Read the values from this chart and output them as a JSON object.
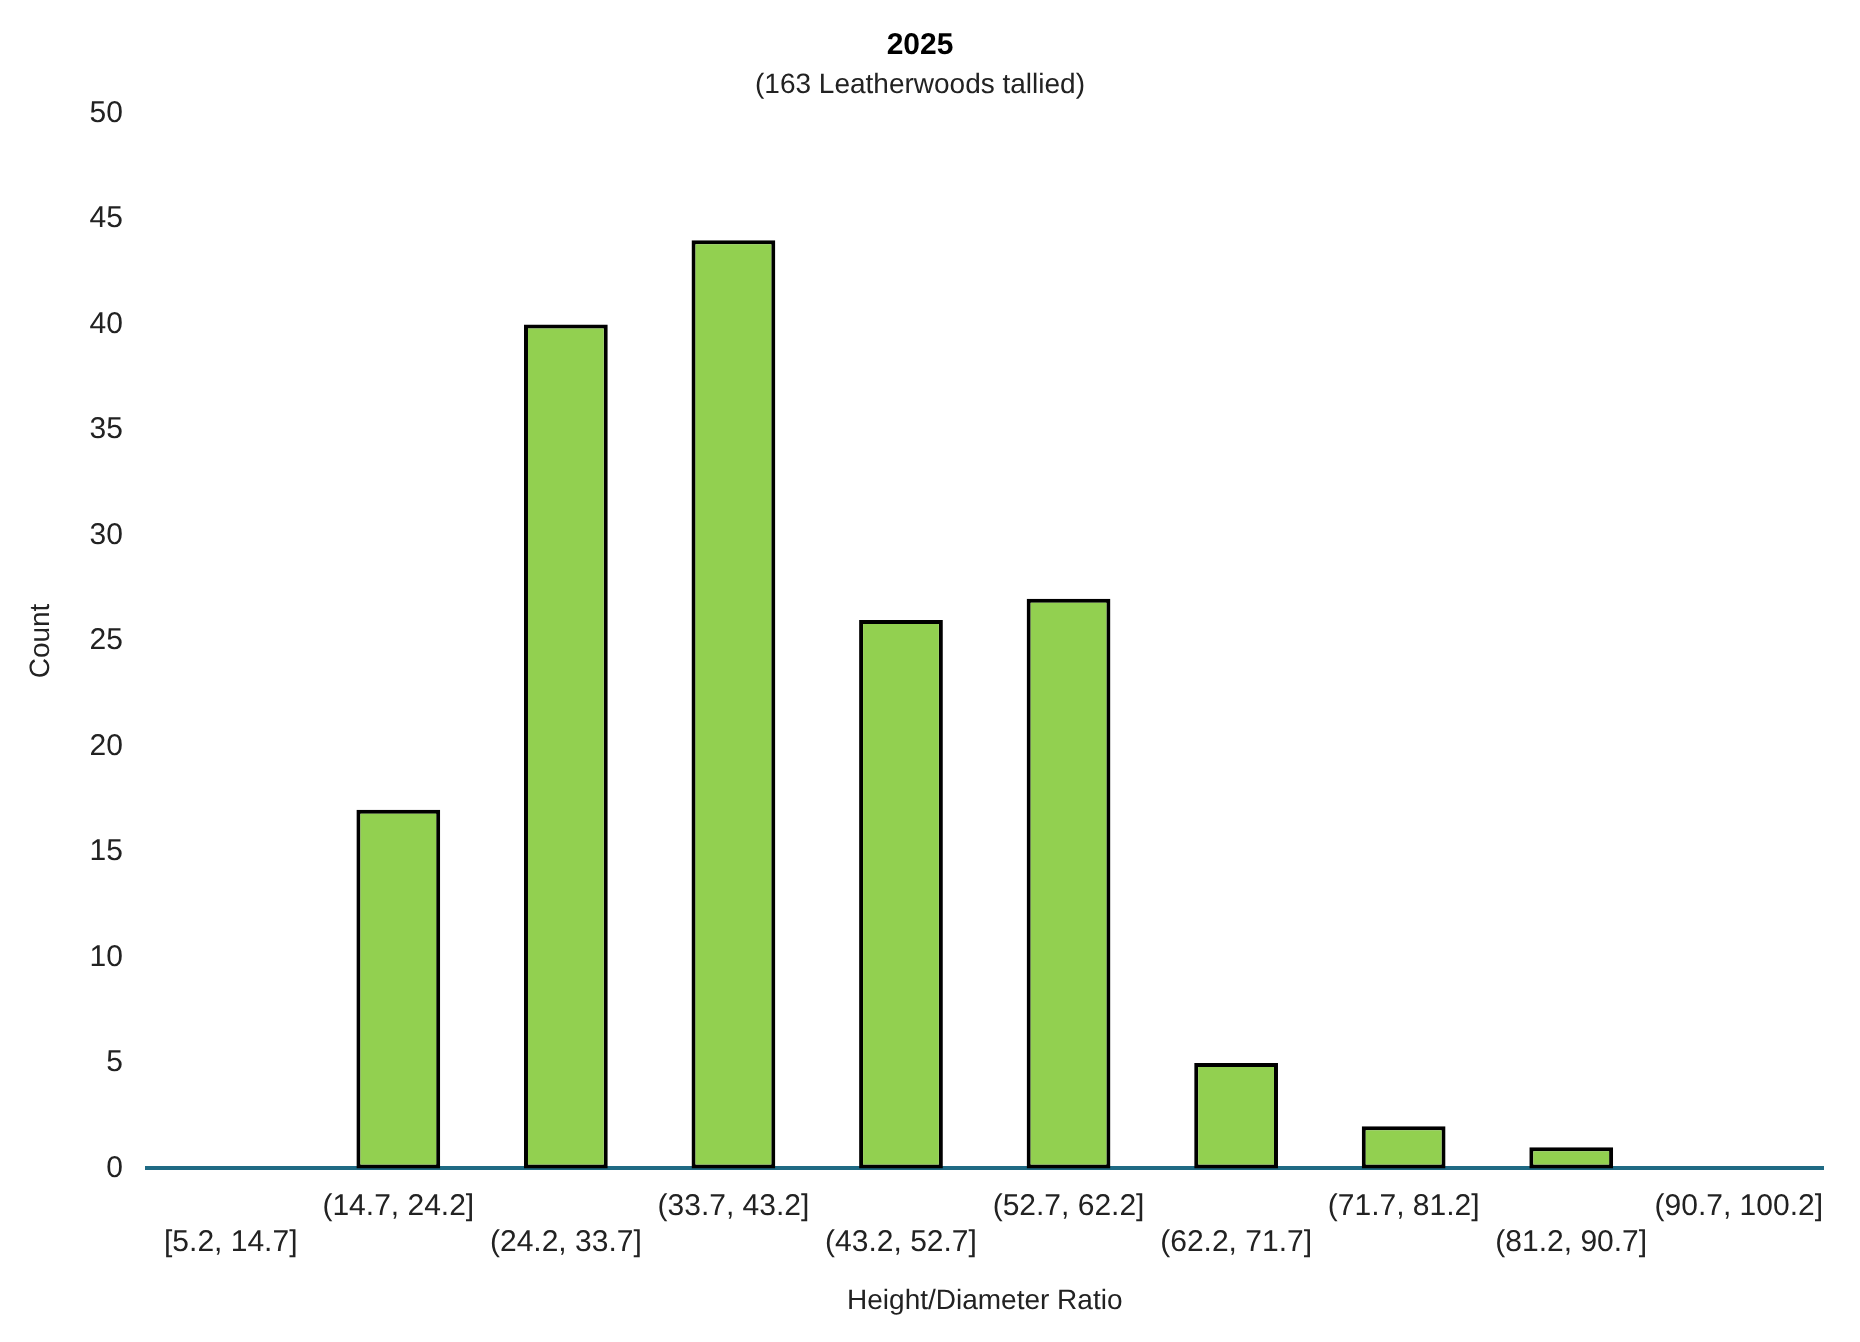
{
  "chart_data": {
    "type": "bar",
    "title": "2025",
    "subtitle": "(163 Leatherwoods tallied)",
    "xlabel": "Height/Diameter Ratio",
    "ylabel": "Count",
    "categories": [
      "[5.2, 14.7]",
      "(14.7, 24.2]",
      "(24.2, 33.7]",
      "(33.7, 43.2]",
      "(43.2, 52.7]",
      "(52.7, 62.2]",
      "(62.2, 71.7]",
      "(71.7, 81.2]",
      "(81.2, 90.7]",
      "(90.7, 100.2]"
    ],
    "values": [
      0,
      17,
      40,
      44,
      26,
      27,
      5,
      2,
      1,
      0
    ],
    "color": "#92d050",
    "ylim": [
      0,
      50
    ],
    "yticks": [
      0,
      5,
      10,
      15,
      20,
      25,
      30,
      35,
      40,
      45,
      50
    ],
    "grid": false,
    "legend": false
  }
}
